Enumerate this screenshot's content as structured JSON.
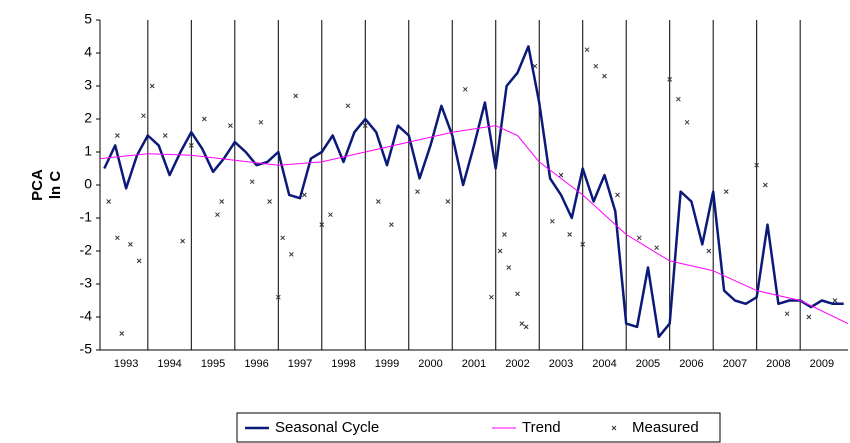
{
  "chart_data": {
    "type": "line",
    "ylabel": [
      "PCA",
      "ln C"
    ],
    "xlim": [
      1992.9,
      2010.1
    ],
    "ylim": [
      -5,
      5
    ],
    "yticks": [
      -5,
      -4,
      -3,
      -2,
      -1,
      0,
      1,
      2,
      3,
      4,
      5
    ],
    "xticks": [
      {
        "value": 1993.5,
        "label": "1993"
      },
      {
        "value": 1994.5,
        "label": "1994"
      },
      {
        "value": 1995.5,
        "label": "1995"
      },
      {
        "value": 1996.5,
        "label": "1996"
      },
      {
        "value": 1997.5,
        "label": "1997"
      },
      {
        "value": 1998.5,
        "label": "1998"
      },
      {
        "value": 1999.5,
        "label": "1999"
      },
      {
        "value": 2000.5,
        "label": "2000"
      },
      {
        "value": 2001.5,
        "label": "2001"
      },
      {
        "value": 2002.5,
        "label": "2002"
      },
      {
        "value": 2003.5,
        "label": "2003"
      },
      {
        "value": 2004.5,
        "label": "2004"
      },
      {
        "value": 2005.5,
        "label": "2005"
      },
      {
        "value": 2006.5,
        "label": "2006"
      },
      {
        "value": 2007.5,
        "label": "2007"
      },
      {
        "value": 2008.5,
        "label": "2008"
      },
      {
        "value": 2009.5,
        "label": "2009"
      }
    ],
    "x_gridlines": [
      1994,
      1995,
      1996,
      1997,
      1998,
      1999,
      2000,
      2001,
      2002,
      2003,
      2004,
      2005,
      2006,
      2007,
      2008,
      2009
    ],
    "legend": "bottom",
    "series": [
      {
        "name": "Seasonal Cycle",
        "color": "#0b1a78",
        "style": "line",
        "x": [
          1993.0,
          1993.25,
          1993.5,
          1993.75,
          1994.0,
          1994.25,
          1994.5,
          1994.75,
          1995.0,
          1995.25,
          1995.5,
          1995.75,
          1996.0,
          1996.25,
          1996.5,
          1996.75,
          1997.0,
          1997.25,
          1997.5,
          1997.75,
          1998.0,
          1998.25,
          1998.5,
          1998.75,
          1999.0,
          1999.25,
          1999.5,
          1999.75,
          2000.0,
          2000.25,
          2000.5,
          2000.75,
          2001.0,
          2001.25,
          2001.5,
          2001.75,
          2002.0,
          2002.25,
          2002.5,
          2002.75,
          2003.0,
          2003.25,
          2003.5,
          2003.75,
          2004.0,
          2004.25,
          2004.5,
          2004.75,
          2005.0,
          2005.25,
          2005.5,
          2005.75,
          2006.0,
          2006.25,
          2006.5,
          2006.75,
          2007.0,
          2007.25,
          2007.5,
          2007.75,
          2008.0,
          2008.25,
          2008.5,
          2008.75,
          2009.0,
          2009.25,
          2009.5,
          2009.75,
          2010.0
        ],
        "values": [
          0.5,
          1.2,
          -0.1,
          0.9,
          1.5,
          1.2,
          0.3,
          1.0,
          1.6,
          1.1,
          0.4,
          0.8,
          1.3,
          1.0,
          0.6,
          0.7,
          1.0,
          -0.3,
          -0.4,
          0.8,
          1.0,
          1.5,
          0.7,
          1.6,
          2.0,
          1.6,
          0.6,
          1.8,
          1.5,
          0.2,
          1.2,
          2.4,
          1.5,
          0.0,
          1.2,
          2.5,
          0.5,
          3.0,
          3.4,
          4.2,
          2.5,
          0.2,
          -0.3,
          -1.0,
          0.5,
          -0.5,
          0.3,
          -0.8,
          -4.2,
          -4.3,
          -2.5,
          -4.6,
          -4.2,
          -0.2,
          -0.5,
          -1.8,
          -0.2,
          -3.2,
          -3.5,
          -3.6,
          -3.4,
          -1.2,
          -3.6,
          -3.5,
          -3.5,
          -3.7,
          -3.5,
          -3.6,
          -3.6
        ]
      },
      {
        "name": "Trend",
        "color": "#ff00ff",
        "style": "line",
        "x": [
          1992.9,
          1994,
          1995,
          1996,
          1997,
          1998,
          1999,
          2000,
          2001,
          2002,
          2002.5,
          2003,
          2004,
          2005,
          2006,
          2007,
          2008,
          2009,
          2010.1
        ],
        "values": [
          0.8,
          0.95,
          0.9,
          0.75,
          0.6,
          0.7,
          1.0,
          1.3,
          1.6,
          1.8,
          1.5,
          0.7,
          -0.3,
          -1.5,
          -2.3,
          -2.6,
          -3.2,
          -3.5,
          -4.2
        ]
      },
      {
        "name": "Measured",
        "color": "#333333",
        "style": "marker",
        "x": [
          1993.1,
          1993.3,
          1993.6,
          1993.4,
          1993.8,
          1993.9,
          1994.1,
          1994.4,
          1994.8,
          1995.3,
          1995.6,
          1995.7,
          1995.9,
          1996.4,
          1996.6,
          1996.8,
          1997.0,
          1997.1,
          1997.3,
          1997.4,
          1997.6,
          1998.0,
          1998.2,
          1998.6,
          1999.3,
          1999.6,
          2000.2,
          2000.9,
          2001.3,
          2001.9,
          2002.1,
          2002.2,
          2002.3,
          2002.5,
          2002.6,
          2002.7,
          2003.3,
          2003.7,
          2004.0,
          2004.1,
          2004.3,
          2004.5,
          2004.8,
          2005.3,
          2005.7,
          2006.0,
          2006.2,
          2006.4,
          2006.9,
          2007.3,
          2008.0,
          2008.2,
          2008.7,
          2009.2,
          2009.8,
          1993.3,
          1995.0,
          1999.0,
          2002.9,
          2003.5
        ],
        "values": [
          -0.5,
          -1.6,
          -1.8,
          -4.5,
          -2.3,
          2.1,
          3.0,
          1.5,
          -1.7,
          2.0,
          -0.9,
          -0.5,
          1.8,
          0.1,
          1.9,
          -0.5,
          -3.4,
          -1.6,
          -2.1,
          2.7,
          -0.3,
          -1.2,
          -0.9,
          2.4,
          -0.5,
          -1.2,
          -0.2,
          -0.5,
          2.9,
          -3.4,
          -2.0,
          -1.5,
          -2.5,
          -3.3,
          -4.2,
          -4.3,
          -1.1,
          -1.5,
          -1.8,
          4.1,
          3.6,
          3.3,
          -0.3,
          -1.6,
          -1.9,
          3.2,
          2.6,
          1.9,
          -2.0,
          -0.2,
          0.6,
          0.0,
          -3.9,
          -4.0,
          -3.5,
          1.5,
          1.2,
          1.8,
          3.6,
          0.3
        ]
      }
    ]
  }
}
